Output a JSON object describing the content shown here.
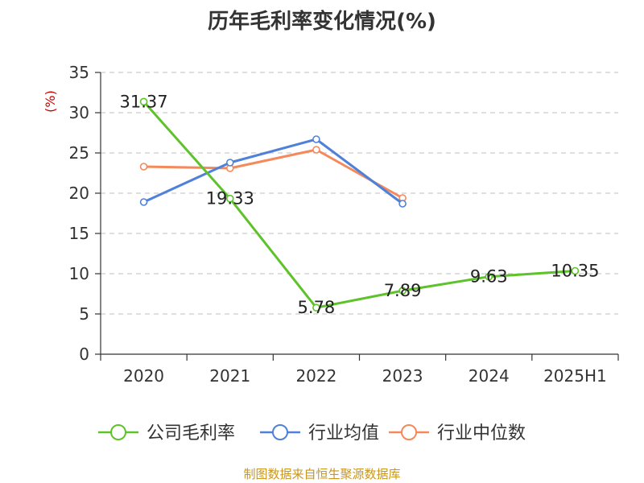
{
  "title": "历年毛利率变化情况(%)",
  "source": "制图数据来自恒生聚源数据库",
  "chart_data": {
    "type": "line",
    "title": "历年毛利率变化情况(%)",
    "ylabel": "(%)",
    "ylabel_color": "#cc0000",
    "xlabel": "",
    "categories": [
      "2020",
      "2021",
      "2022",
      "2023",
      "2024",
      "2025H1"
    ],
    "ylim": [
      0,
      35
    ],
    "yticks": [
      0,
      5,
      10,
      15,
      20,
      25,
      30,
      35
    ],
    "grid": true,
    "legend_position": "bottom",
    "series": [
      {
        "name": "公司毛利率",
        "color": "#5ec22a",
        "values": [
          31.37,
          19.33,
          5.78,
          7.89,
          9.63,
          10.35
        ],
        "labels": [
          "31.37",
          "19.33",
          "5.78",
          "7.89",
          "9.63",
          "10.35"
        ]
      },
      {
        "name": "行业均值",
        "color": "#4f81d9",
        "values": [
          18.9,
          23.8,
          26.7,
          18.7,
          null,
          null
        ]
      },
      {
        "name": "行业中位数",
        "color": "#f4895c",
        "values": [
          23.3,
          23.1,
          25.4,
          19.4,
          null,
          null
        ]
      }
    ]
  }
}
